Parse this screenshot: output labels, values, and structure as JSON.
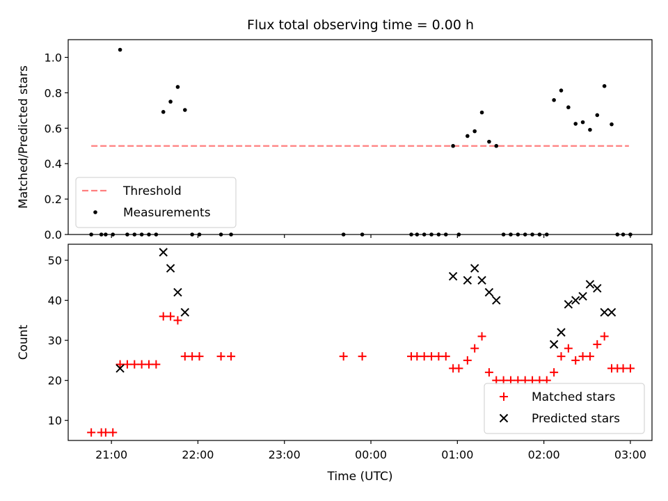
{
  "figure_title": "Flux total observing time = 0.00 h",
  "chart_data": [
    {
      "type": "scatter",
      "title": "Flux total observing time = 0.00 h",
      "xlabel": "",
      "ylabel": "Matched/Predicted stars",
      "ylim": [
        0,
        1.1
      ],
      "yticks": [
        "0.0",
        "0.2",
        "0.4",
        "0.6",
        "0.8",
        "1.0"
      ],
      "legend": "lower-left",
      "grid": false,
      "threshold": {
        "name": "Threshold",
        "value": 0.5,
        "x_start": "20:46",
        "x_end": "02:59",
        "color": "#ff7f7f"
      },
      "series": [
        {
          "name": "Measurements",
          "marker": "dot",
          "color": "#000000",
          "points": [
            [
              "20:46",
              0.0
            ],
            [
              "20:53",
              0.0
            ],
            [
              "20:56",
              0.0
            ],
            [
              "21:01",
              0.0
            ],
            [
              "21:06",
              1.043
            ],
            [
              "21:11",
              0.0
            ],
            [
              "21:16",
              0.0
            ],
            [
              "21:21",
              0.0
            ],
            [
              "21:26",
              0.0
            ],
            [
              "21:31",
              0.0
            ],
            [
              "21:36",
              0.692
            ],
            [
              "21:41",
              0.75
            ],
            [
              "21:46",
              0.833
            ],
            [
              "21:51",
              0.703
            ],
            [
              "21:56",
              0.0
            ],
            [
              "22:01",
              0.0
            ],
            [
              "22:16",
              0.0
            ],
            [
              "22:23",
              0.0
            ],
            [
              "23:41",
              0.0
            ],
            [
              "23:54",
              0.0
            ],
            [
              "00:28",
              0.0
            ],
            [
              "00:32",
              0.0
            ],
            [
              "00:37",
              0.0
            ],
            [
              "00:42",
              0.0
            ],
            [
              "00:47",
              0.0
            ],
            [
              "00:52",
              0.0
            ],
            [
              "00:57",
              0.5
            ],
            [
              "01:01",
              0.0
            ],
            [
              "01:07",
              0.556
            ],
            [
              "01:12",
              0.583
            ],
            [
              "01:17",
              0.689
            ],
            [
              "01:22",
              0.524
            ],
            [
              "01:27",
              0.5
            ],
            [
              "01:32",
              0.0
            ],
            [
              "01:37",
              0.0
            ],
            [
              "01:42",
              0.0
            ],
            [
              "01:47",
              0.0
            ],
            [
              "01:52",
              0.0
            ],
            [
              "01:57",
              0.0
            ],
            [
              "02:02",
              0.0
            ],
            [
              "02:07",
              0.759
            ],
            [
              "02:12",
              0.813
            ],
            [
              "02:17",
              0.718
            ],
            [
              "02:22",
              0.625
            ],
            [
              "02:27",
              0.634
            ],
            [
              "02:32",
              0.591
            ],
            [
              "02:37",
              0.674
            ],
            [
              "02:42",
              0.838
            ],
            [
              "02:47",
              0.622
            ],
            [
              "02:51",
              0.0
            ],
            [
              "02:55",
              0.0
            ],
            [
              "03:00",
              0.0
            ]
          ]
        }
      ]
    },
    {
      "type": "scatter",
      "title": "",
      "xlabel": "Time (UTC)",
      "ylabel": "Count",
      "ylim": [
        5,
        54
      ],
      "yticks": [
        "10",
        "20",
        "30",
        "40",
        "50"
      ],
      "xticks": [
        "21:00",
        "22:00",
        "23:00",
        "00:00",
        "01:00",
        "02:00",
        "03:00"
      ],
      "legend": "lower-right",
      "grid": false,
      "series": [
        {
          "name": "Matched stars",
          "marker": "plus",
          "color": "#ff0000",
          "points": [
            [
              "20:46",
              7
            ],
            [
              "20:53",
              7
            ],
            [
              "20:56",
              7
            ],
            [
              "21:01",
              7
            ],
            [
              "21:06",
              24
            ],
            [
              "21:11",
              24
            ],
            [
              "21:16",
              24
            ],
            [
              "21:21",
              24
            ],
            [
              "21:26",
              24
            ],
            [
              "21:31",
              24
            ],
            [
              "21:36",
              36
            ],
            [
              "21:41",
              36
            ],
            [
              "21:46",
              35
            ],
            [
              "21:51",
              26
            ],
            [
              "21:56",
              26
            ],
            [
              "22:01",
              26
            ],
            [
              "22:16",
              26
            ],
            [
              "22:23",
              26
            ],
            [
              "23:41",
              26
            ],
            [
              "23:54",
              26
            ],
            [
              "00:28",
              26
            ],
            [
              "00:32",
              26
            ],
            [
              "00:37",
              26
            ],
            [
              "00:42",
              26
            ],
            [
              "00:47",
              26
            ],
            [
              "00:52",
              26
            ],
            [
              "00:57",
              23
            ],
            [
              "01:01",
              23
            ],
            [
              "01:07",
              25
            ],
            [
              "01:12",
              28
            ],
            [
              "01:17",
              31
            ],
            [
              "01:22",
              22
            ],
            [
              "01:27",
              20
            ],
            [
              "01:32",
              20
            ],
            [
              "01:37",
              20
            ],
            [
              "01:42",
              20
            ],
            [
              "01:47",
              20
            ],
            [
              "01:52",
              20
            ],
            [
              "01:57",
              20
            ],
            [
              "02:02",
              20
            ],
            [
              "02:07",
              22
            ],
            [
              "02:12",
              26
            ],
            [
              "02:17",
              28
            ],
            [
              "02:22",
              25
            ],
            [
              "02:27",
              26
            ],
            [
              "02:32",
              26
            ],
            [
              "02:37",
              29
            ],
            [
              "02:42",
              31
            ],
            [
              "02:47",
              23
            ],
            [
              "02:51",
              23
            ],
            [
              "02:55",
              23
            ],
            [
              "03:00",
              23
            ]
          ]
        },
        {
          "name": "Predicted stars",
          "marker": "x",
          "color": "#000000",
          "points": [
            [
              "21:06",
              23
            ],
            [
              "21:36",
              52
            ],
            [
              "21:41",
              48
            ],
            [
              "21:46",
              42
            ],
            [
              "21:51",
              37
            ],
            [
              "00:57",
              46
            ],
            [
              "01:07",
              45
            ],
            [
              "01:12",
              48
            ],
            [
              "01:17",
              45
            ],
            [
              "01:22",
              42
            ],
            [
              "01:27",
              40
            ],
            [
              "02:07",
              29
            ],
            [
              "02:12",
              32
            ],
            [
              "02:17",
              39
            ],
            [
              "02:22",
              40
            ],
            [
              "02:27",
              41
            ],
            [
              "02:32",
              44
            ],
            [
              "02:37",
              43
            ],
            [
              "02:42",
              37
            ],
            [
              "02:47",
              37
            ]
          ]
        }
      ]
    }
  ]
}
